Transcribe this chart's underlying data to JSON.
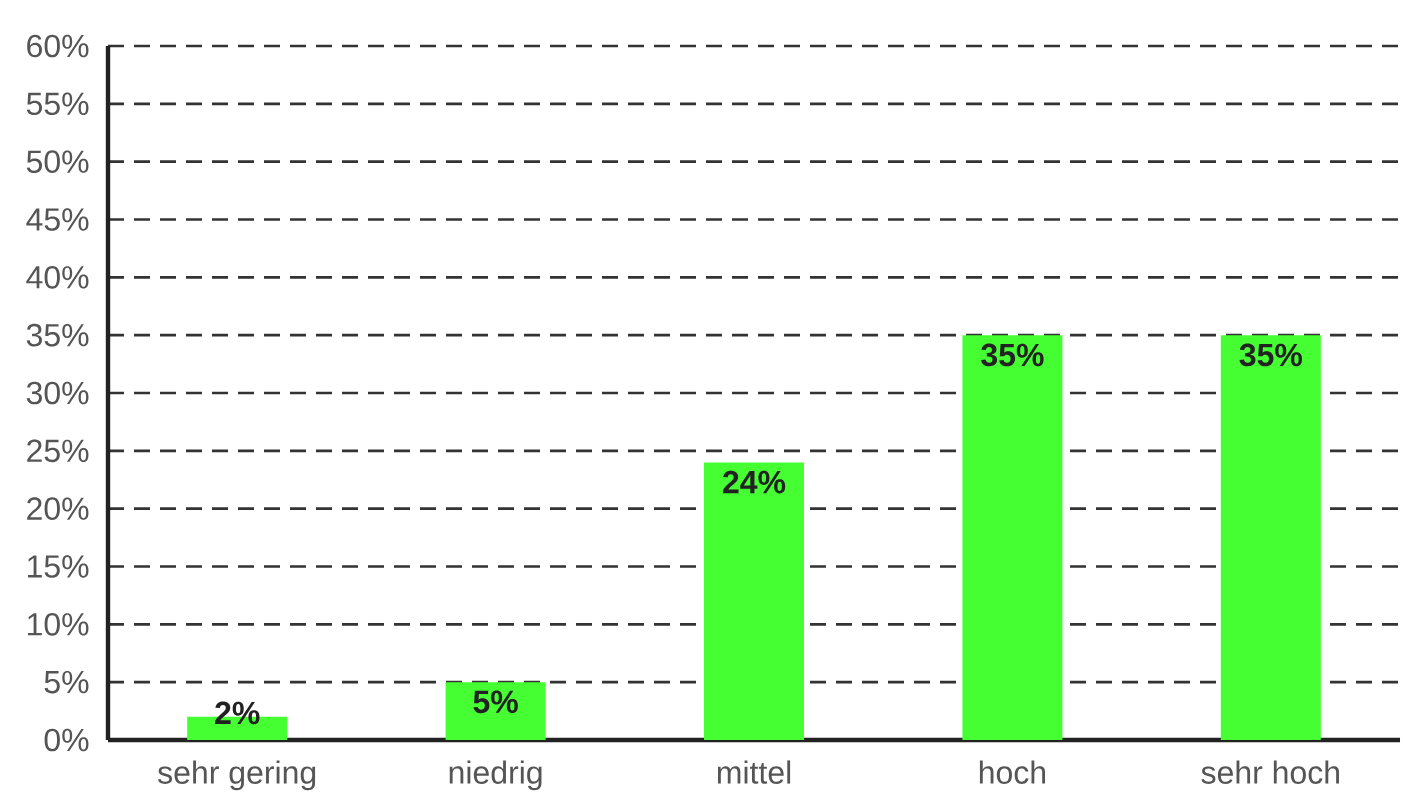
{
  "chart_data": {
    "type": "bar",
    "categories": [
      "sehr gering",
      "niedrig",
      "mittel",
      "hoch",
      "sehr hoch"
    ],
    "values": [
      2,
      5,
      24,
      35,
      35
    ],
    "color": "#45ff33",
    "value_labels": [
      "2%",
      "5%",
      "24%",
      "35%",
      "35%"
    ],
    "ylim": [
      0,
      60
    ],
    "yticks": [
      {
        "value": 0,
        "label": "0%"
      },
      {
        "value": 5,
        "label": "5%"
      },
      {
        "value": 10,
        "label": "10%"
      },
      {
        "value": 15,
        "label": "15%"
      },
      {
        "value": 20,
        "label": "20%"
      },
      {
        "value": 25,
        "label": "25%"
      },
      {
        "value": 30,
        "label": "30%"
      },
      {
        "value": 35,
        "label": "35%"
      },
      {
        "value": 40,
        "label": "40%"
      },
      {
        "value": 45,
        "label": "45%"
      },
      {
        "value": 50,
        "label": "50%"
      },
      {
        "value": 55,
        "label": "55%"
      },
      {
        "value": 60,
        "label": "60%"
      }
    ],
    "grid": "y"
  }
}
